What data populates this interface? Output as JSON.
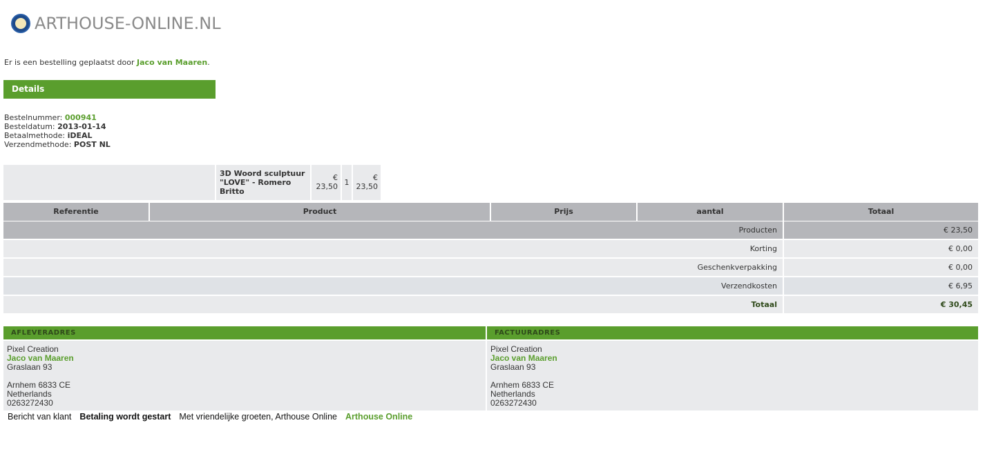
{
  "logo": {
    "text": "ARTHOUSE-ONLINE.NL"
  },
  "intro": {
    "prefix": "Er is een bestelling geplaatst door ",
    "name": "Jaco van Maaren",
    "suffix": "."
  },
  "details": {
    "title": "Details",
    "order_number_label": "Bestelnummer: ",
    "order_number": "000941",
    "order_date_label": "Besteldatum: ",
    "order_date": "2013-01-14",
    "payment_label": "Betaalmethode: ",
    "payment": "iDEAL",
    "shipping_label": "Verzendmethode: ",
    "shipping": "POST NL"
  },
  "product_row": {
    "reference": "",
    "product": "3D Woord sculptuur \"LOVE\" - Romero Britto",
    "price": "€ 23,50",
    "quantity": "1",
    "total": "€ 23,50"
  },
  "table": {
    "headers": [
      "Referentie",
      "Product",
      "Prijs",
      "aantal",
      "Totaal"
    ],
    "summary": [
      {
        "label": "Producten",
        "value": "€ 23,50"
      },
      {
        "label": "Korting",
        "value": "€ 0,00"
      },
      {
        "label": "Geschenkverpakking",
        "value": "€ 0,00"
      },
      {
        "label": "Verzendkosten",
        "value": "€ 6,95"
      }
    ],
    "total": {
      "label": "Totaal",
      "value": "€ 30,45"
    }
  },
  "delivery": {
    "title": "AFLEVERADRES",
    "company": "Pixel Creation",
    "name": "Jaco van Maaren",
    "street": "Graslaan 93",
    "city": "Arnhem 6833 CE",
    "country": "Netherlands",
    "phone": "0263272430"
  },
  "invoice": {
    "title": "FACTUURADRES",
    "company": "Pixel Creation",
    "name": "Jaco van Maaren",
    "street": "Graslaan 93",
    "city": "Arnhem 6833 CE",
    "country": "Netherlands",
    "phone": "0263272430"
  },
  "footer": {
    "message_label": "Bericht van klant",
    "status": "Betaling wordt gestart",
    "greeting": "Met vriendelijke groeten, Arthouse Online",
    "signature": "Arthouse Online"
  },
  "colors": {
    "accent": "#5a9e2d",
    "header_gray": "#b5b6ba",
    "row_gray": "#e9eaec"
  }
}
